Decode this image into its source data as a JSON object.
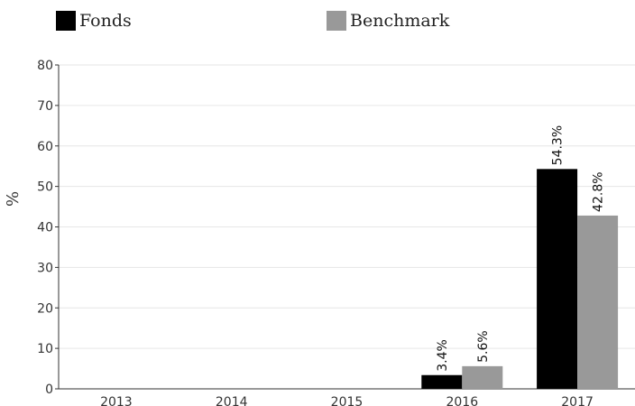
{
  "chart_data": {
    "type": "bar",
    "categories": [
      "2013",
      "2014",
      "2015",
      "2016",
      "2017"
    ],
    "series": [
      {
        "name": "Fonds",
        "values": [
          null,
          null,
          null,
          3.4,
          54.3
        ],
        "labels": [
          "",
          "",
          "",
          "3.4%",
          "54.3%"
        ],
        "color": "#000000"
      },
      {
        "name": "Benchmark",
        "values": [
          null,
          null,
          null,
          5.6,
          42.8
        ],
        "labels": [
          "",
          "",
          "",
          "5.6%",
          "42.8%"
        ],
        "color": "#999999"
      }
    ],
    "ylabel": "%",
    "ylim": [
      0,
      80
    ],
    "yticks": [
      "0",
      "10",
      "20",
      "30",
      "40",
      "50",
      "60",
      "70",
      "80"
    ],
    "grid": true,
    "legend_position": "top-left"
  }
}
